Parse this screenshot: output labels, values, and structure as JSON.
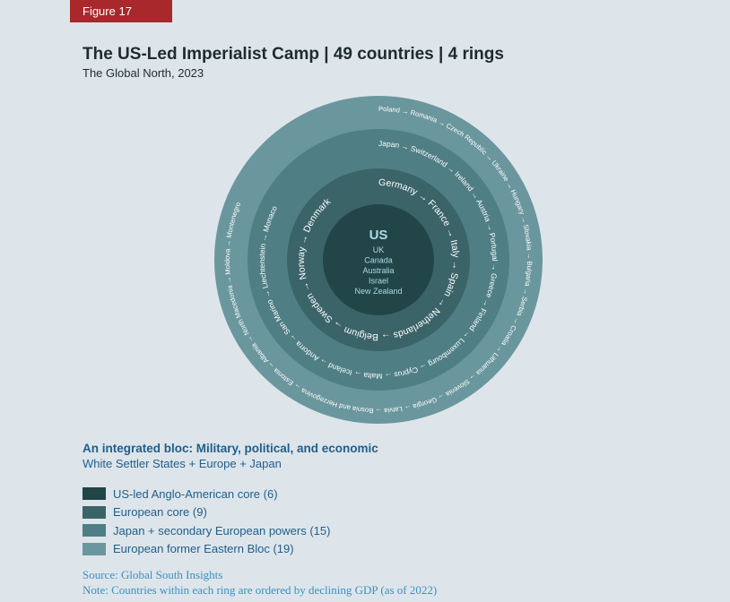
{
  "figure_label": "Figure 17",
  "title": "The US-Led Imperialist Camp | 49 countries | 4 rings",
  "subtitle": "The Global North, 2023",
  "colors": {
    "ring4": "#6a979d",
    "ring3": "#4f7f85",
    "ring2": "#3b6469",
    "core": "#224548",
    "core_title": "#a9dbe6",
    "core_list": "#a9dbe6",
    "accent_red": "#a8282c",
    "text_blue": "#1f5e8c",
    "source_blue": "#3b8fbf"
  },
  "core": {
    "title": "US",
    "countries": [
      "UK",
      "Canada",
      "Australia",
      "Israel",
      "New Zealand"
    ]
  },
  "rings": [
    {
      "name": "European former Eastern Bloc",
      "text_segments": [
        "Poland → Romania → Czech Republic → Ukraine → Hungary → Slovakia → Bulgaria → Serbia → Croatia → Lithuania → Slovenia → Georgia → Latvia → Bosnia and Herzegovina → Estonia → Albania → North Macedonia → Moldova → Montenegro"
      ]
    },
    {
      "name": "Japan + secondary European powers",
      "text_segments": [
        "Japan → Switzerland → Ireland → Austria → Portugal → Greece → Finland → Luxembourg → Cyprus → Malta → Iceland → Andorra → San Marino → Liechtenstein → Monaco"
      ]
    },
    {
      "name": "European core",
      "text_segments": [
        "Germany → France → Italy → Spain → Netherlands → Belgium → Sweden → Norway → Denmark"
      ]
    }
  ],
  "description": {
    "heading": "An integrated bloc: Military, political, and economic",
    "subheading": "White Settler States + Europe + Japan"
  },
  "legend": [
    {
      "label": "US-led Anglo-American core (6)",
      "color": "#224548"
    },
    {
      "label": "European core (9)",
      "color": "#3b6469"
    },
    {
      "label": "Japan + secondary European powers (15)",
      "color": "#4f7f85"
    },
    {
      "label": "European former Eastern Bloc (19)",
      "color": "#6a979d"
    }
  ],
  "source": "Source: Global South Insights",
  "note": "Note: Countries within each ring are ordered by declining GDP (as of 2022)"
}
